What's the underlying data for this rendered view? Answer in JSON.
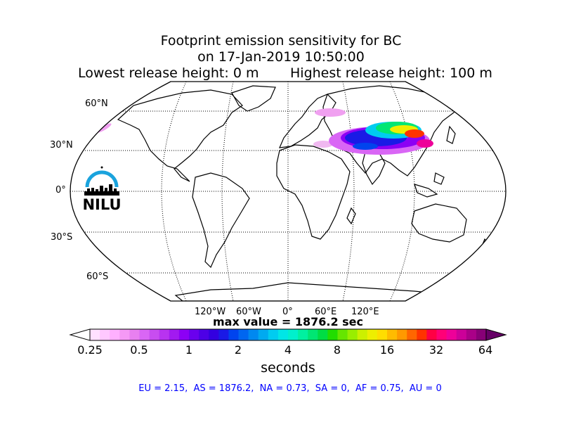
{
  "title": {
    "line1": "Footprint emission sensitivity for BC",
    "line2": "on 17-Jan-2019 10:50:00",
    "lowest": "Lowest release height: 0 m",
    "highest": "Highest release height: 100 m"
  },
  "map": {
    "projection": "robinson",
    "lat_labels": [
      "60°N",
      "30°N",
      "0°",
      "30°S",
      "60°S"
    ],
    "lon_labels": [
      "120°W",
      "60°W",
      "0°",
      "60°E",
      "120°E"
    ],
    "logo_text": "NILU"
  },
  "max_value": "max value = 1876.2 sec",
  "colorbar": {
    "ticks": [
      "0.25",
      "0.5",
      "1",
      "2",
      "4",
      "8",
      "16",
      "32",
      "64"
    ],
    "unit": "seconds",
    "colors": [
      "#ffe0ff",
      "#ffc8ff",
      "#ffb0ff",
      "#f599f5",
      "#e880f0",
      "#d966f5",
      "#c84df0",
      "#b833f0",
      "#a21af0",
      "#8c00f5",
      "#6a00ee",
      "#4d00e6",
      "#3300e0",
      "#1a1ae6",
      "#0044ee",
      "#0066f0",
      "#0088f0",
      "#00aaf0",
      "#00ccf0",
      "#00e6e6",
      "#00f0cc",
      "#00f0a0",
      "#00e673",
      "#00dd44",
      "#22dd00",
      "#66e600",
      "#99ee00",
      "#ccf000",
      "#eeee00",
      "#ffdd00",
      "#ffbb00",
      "#ff9900",
      "#ff6600",
      "#ff3300",
      "#ff0044",
      "#ff0077",
      "#ee0099",
      "#cc0099",
      "#aa0088",
      "#880077"
    ]
  },
  "stats": "EU = 2.15,  AS = 1876.2,  NA = 0.73,  SA = 0,  AF = 0.75,  AU = 0"
}
